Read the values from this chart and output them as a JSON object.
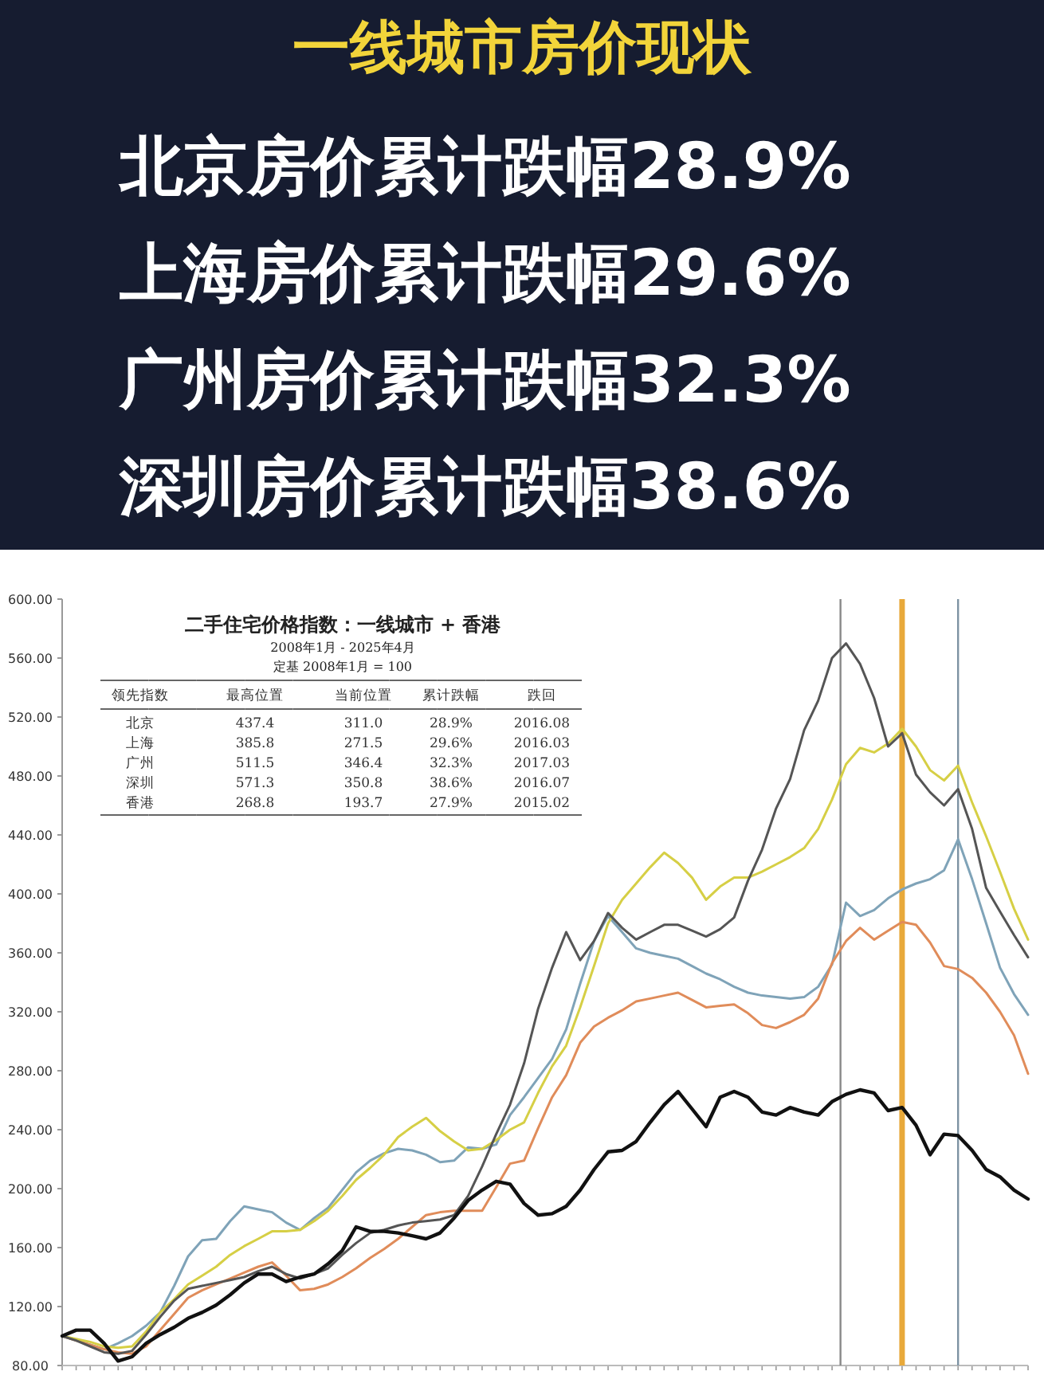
{
  "chart_data": {
    "type": "line",
    "title": "一线城市房价现状",
    "subtitle": "二手住宅价格指数：一线城市 + 香港",
    "annotations": [
      "北京房价累计跌幅28.9%",
      "上海房价累计跌幅29.6%",
      "广州房价累计跌幅32.3%",
      "深圳房价累计跌幅38.6%",
      "2008年1月 - 2025年4月",
      "定基 2008年1月 = 100",
      "领先指数",
      "最高位置",
      "当前位置",
      "累计跌幅",
      "跌回",
      "北京",
      "437.4",
      "311.0",
      "28.9%",
      "2016.08",
      "上海",
      "385.8",
      "271.5",
      "29.6%",
      "2016.03",
      "广州",
      "511.5",
      "346.4",
      "32.3%",
      "2017.03",
      "深圳",
      "571.3",
      "350.8",
      "38.6%",
      "2016.07",
      "香港",
      "268.8",
      "193.7",
      "27.9%",
      "2015.02"
    ],
    "categories": [
      null,
      null,
      null,
      null,
      null,
      null,
      null,
      null,
      null,
      null,
      null,
      null,
      null,
      null,
      null,
      null,
      null,
      null,
      null,
      null,
      null,
      null,
      null,
      null,
      null,
      null,
      null,
      null,
      null,
      null,
      null,
      null,
      null,
      null,
      null,
      null,
      null,
      null,
      null,
      null,
      null,
      null,
      null,
      null,
      null,
      null,
      null,
      null,
      null,
      null,
      null,
      null,
      null,
      null,
      null,
      null,
      null,
      null,
      null,
      null,
      null,
      null,
      null,
      null,
      null,
      null,
      null,
      null,
      null,
      null
    ],
    "ylim": [
      80,
      600
    ],
    "yticks": [
      {
        "value": 80,
        "label": "80.00"
      },
      {
        "value": 120,
        "label": "120.00"
      },
      {
        "value": 160,
        "label": "160.00"
      },
      {
        "value": 200,
        "label": "200.00"
      },
      {
        "value": 240,
        "label": "240.00"
      },
      {
        "value": 280,
        "label": "280.00"
      },
      {
        "value": 320,
        "label": "320.00"
      },
      {
        "value": 360,
        "label": "360.00"
      },
      {
        "value": 400,
        "label": "400.00"
      },
      {
        "value": 440,
        "label": "440.00"
      },
      {
        "value": 480,
        "label": "480.00"
      },
      {
        "value": 520,
        "label": "520.00"
      },
      {
        "value": 560,
        "label": "560.00"
      },
      {
        "value": 600,
        "label": "600.00"
      }
    ],
    "series": [
      {
        "color": "#7fa3b8",
        "values": [
          100,
          97,
          94,
          91,
          95,
          100,
          107,
          116,
          134,
          154,
          165,
          166,
          178,
          188,
          186,
          184,
          177,
          172,
          180,
          187,
          199,
          211,
          219,
          224,
          227,
          226,
          223,
          218,
          219,
          228,
          227,
          230,
          250,
          262,
          275,
          288,
          308,
          339,
          368,
          385,
          374,
          363,
          360,
          358,
          356,
          351,
          346,
          342,
          337,
          333,
          331,
          330,
          329,
          330,
          337,
          352,
          394,
          385,
          389,
          397,
          403,
          407,
          410,
          416,
          437,
          410,
          380,
          350,
          332,
          318
        ]
      },
      {
        "color": "#e08c5a",
        "values": [
          100,
          97,
          94,
          91,
          89,
          88,
          93,
          104,
          115,
          126,
          131,
          135,
          139,
          143,
          147,
          150,
          141,
          131,
          132,
          135,
          140,
          146,
          153,
          159,
          166,
          174,
          182,
          184,
          185,
          185,
          185,
          201,
          217,
          219,
          241,
          262,
          277,
          299,
          310,
          316,
          321,
          327,
          329,
          331,
          333,
          328,
          323,
          324,
          325,
          319,
          311,
          309,
          313,
          318,
          329,
          353,
          368,
          377,
          369,
          375,
          381,
          379,
          367,
          351,
          349,
          343,
          333,
          320,
          304,
          278
        ]
      },
      {
        "color": "#d6cf45",
        "values": [
          100,
          98,
          96,
          93,
          92,
          93,
          103,
          116,
          125,
          135,
          141,
          147,
          155,
          161,
          166,
          171,
          171,
          172,
          178,
          185,
          195,
          206,
          214,
          223,
          235,
          242,
          248,
          239,
          232,
          226,
          227,
          233,
          240,
          245,
          265,
          283,
          297,
          323,
          351,
          380,
          396,
          407,
          418,
          428,
          421,
          411,
          396,
          405,
          411,
          411,
          415,
          420,
          425,
          431,
          444,
          464,
          488,
          499,
          496,
          502,
          512,
          500,
          484,
          477,
          487,
          462,
          439,
          415,
          390,
          369
        ]
      },
      {
        "color": "#555555",
        "values": [
          100,
          97,
          93,
          89,
          88,
          90,
          101,
          113,
          124,
          132,
          134,
          136,
          138,
          140,
          144,
          147,
          142,
          139,
          142,
          146,
          155,
          163,
          170,
          172,
          175,
          177,
          178,
          179,
          182,
          195,
          215,
          237,
          257,
          285,
          322,
          350,
          374,
          355,
          368,
          387,
          377,
          369,
          374,
          379,
          379,
          375,
          371,
          376,
          384,
          409,
          430,
          458,
          478,
          511,
          531,
          560,
          570,
          556,
          533,
          500,
          509,
          481,
          469,
          460,
          471,
          444,
          404,
          388,
          372,
          357
        ]
      },
      {
        "color": "#111111",
        "values": [
          100,
          104,
          104,
          95,
          83,
          86,
          95,
          101,
          106,
          112,
          116,
          121,
          128,
          136,
          142,
          142,
          137,
          140,
          142,
          149,
          158,
          174,
          171,
          171,
          170,
          168,
          166,
          170,
          180,
          192,
          199,
          205,
          203,
          190,
          182,
          183,
          188,
          199,
          213,
          225,
          226,
          232,
          245,
          257,
          266,
          254,
          242,
          262,
          266,
          262,
          252,
          250,
          255,
          252,
          250,
          259,
          264,
          267,
          265,
          253,
          255,
          243,
          223,
          237,
          236,
          226,
          213,
          208,
          199,
          193
        ]
      }
    ]
  }
}
